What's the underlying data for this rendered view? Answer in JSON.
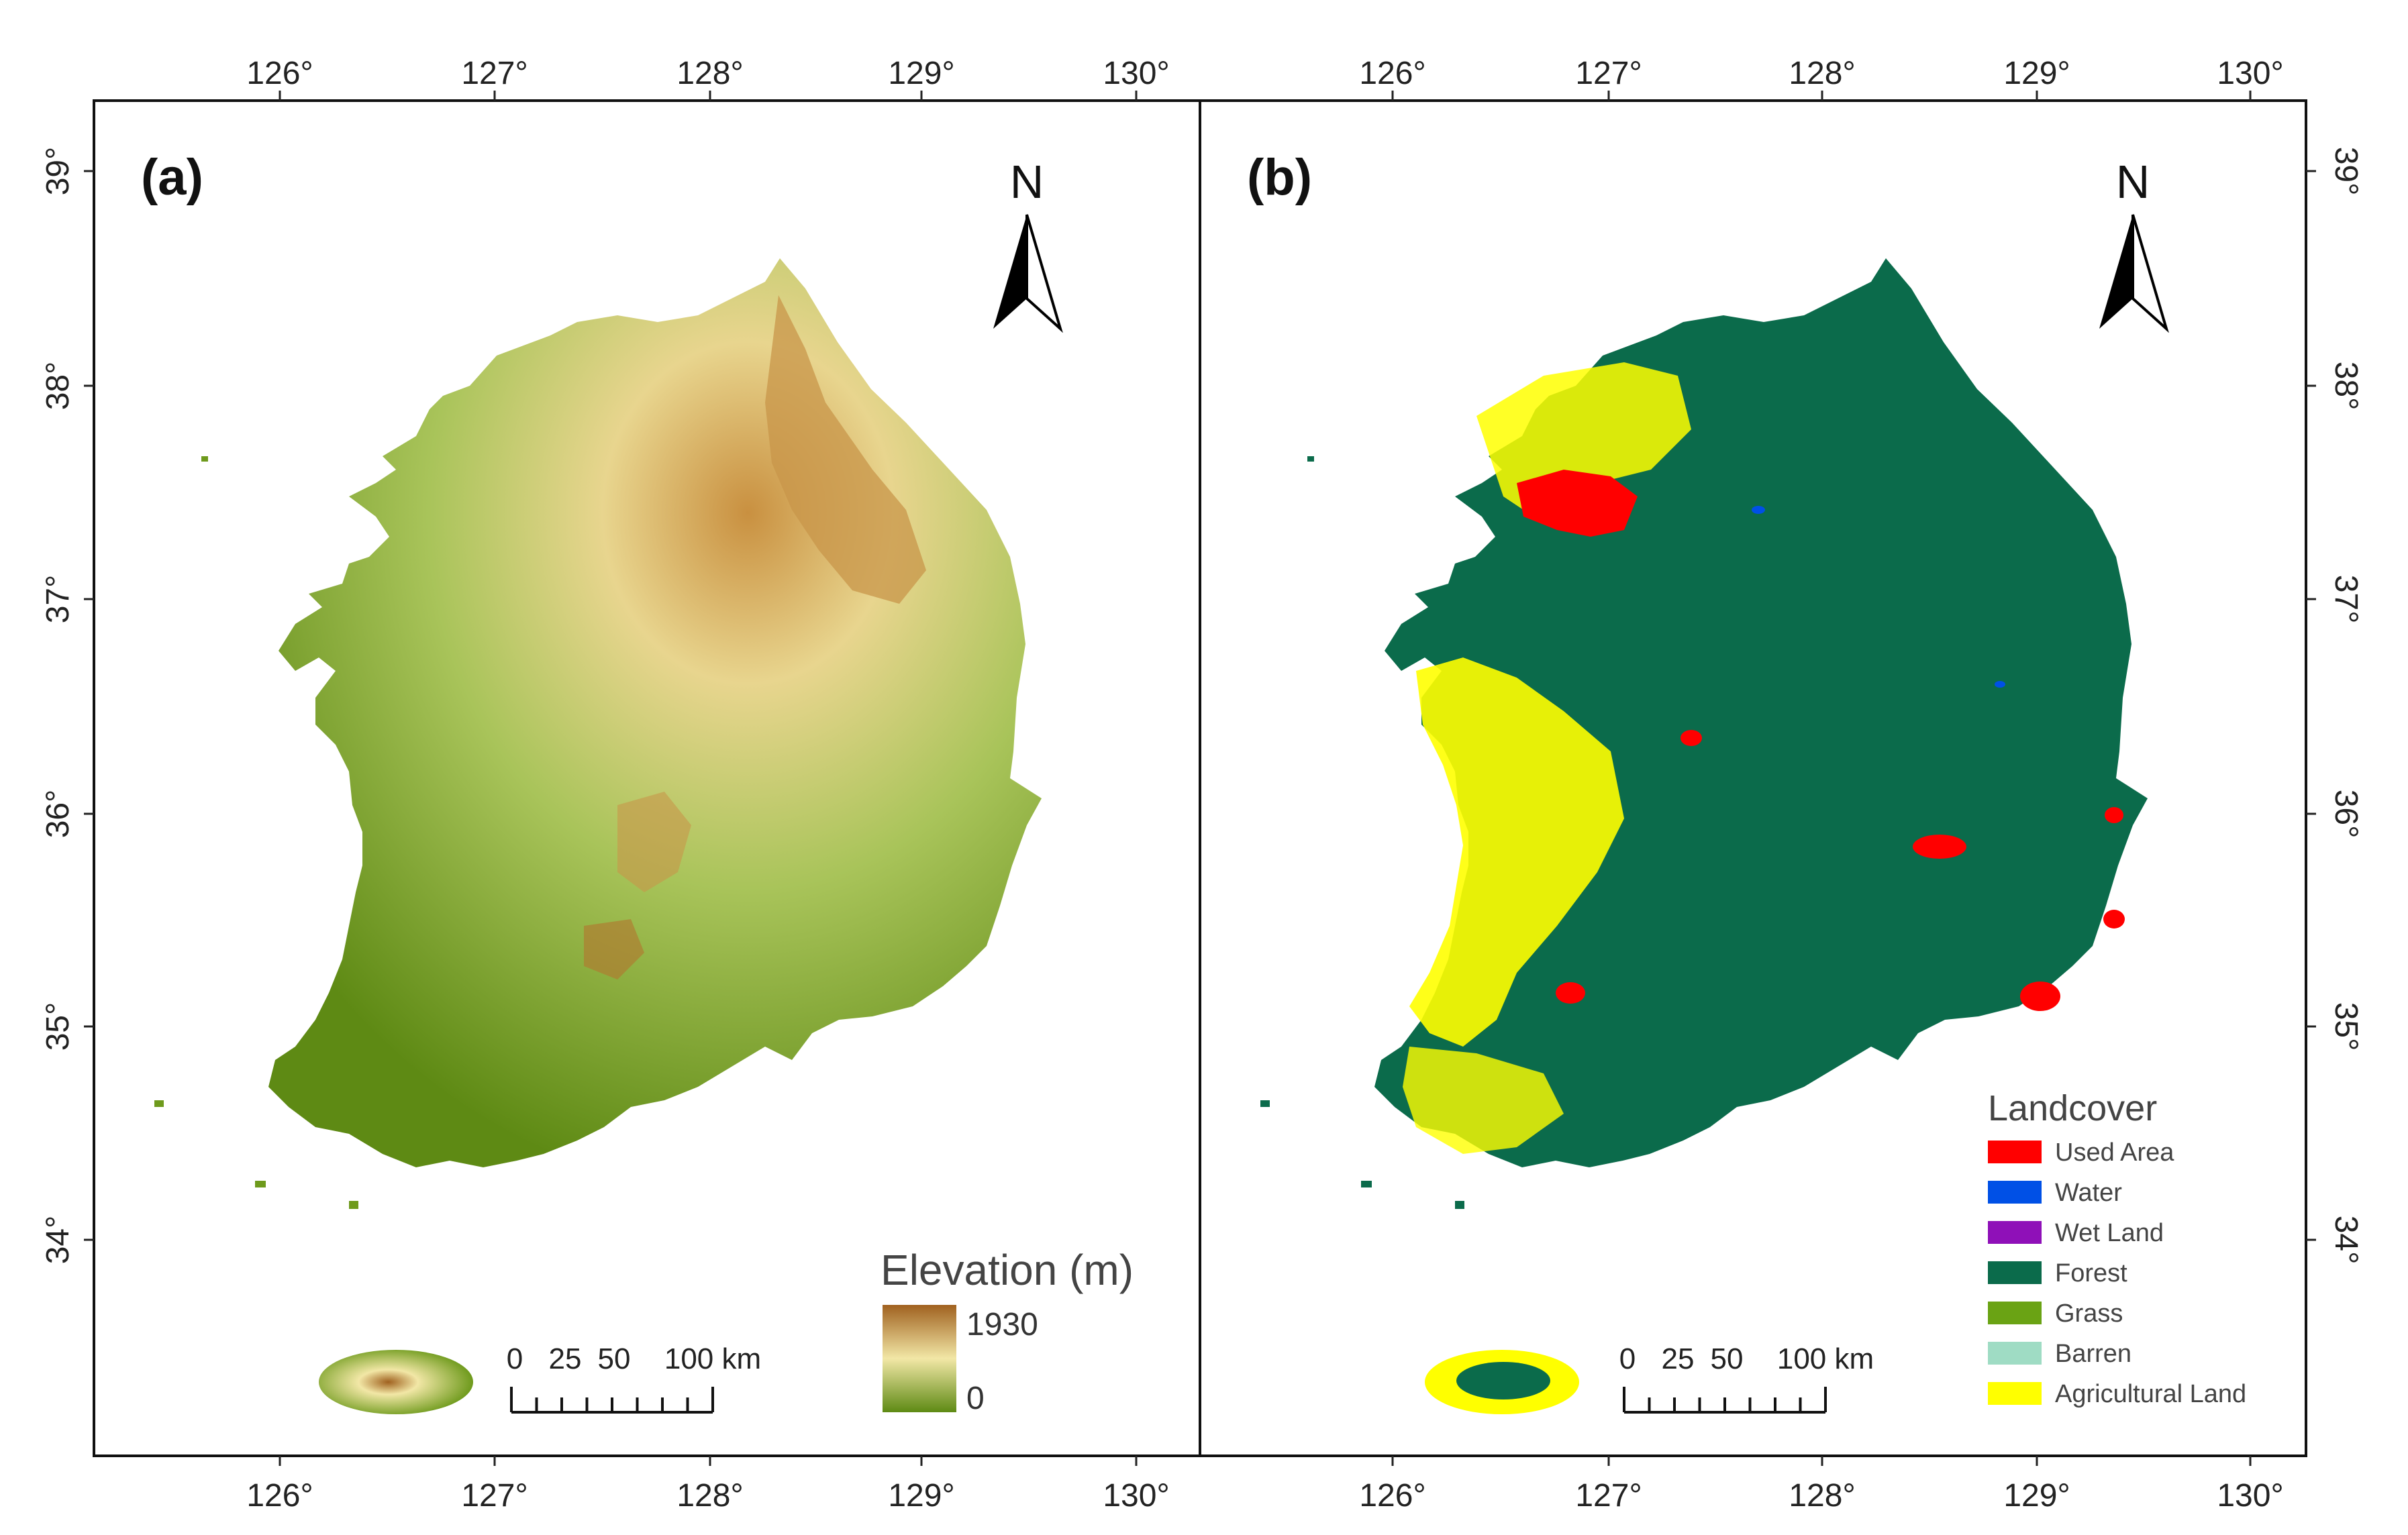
{
  "axes": {
    "longitude_ticks": [
      "126°",
      "127°",
      "128°",
      "129°",
      "130°"
    ],
    "latitude_ticks": [
      "39°",
      "38°",
      "37°",
      "36°",
      "35°",
      "34°"
    ]
  },
  "panel_a": {
    "label": "(a)",
    "north_label": "N",
    "legend": {
      "title": "Elevation (m)",
      "max_label": "1930",
      "min_label": "0",
      "colors": {
        "high": "#a0611f",
        "mid": "#f2e7a6",
        "low": "#5e8a14"
      }
    },
    "scalebar": {
      "labels": [
        "0",
        "25",
        "50",
        "100 km"
      ]
    }
  },
  "panel_b": {
    "label": "(b)",
    "north_label": "N",
    "legend": {
      "title": "Landcover",
      "items": [
        {
          "label": "Used Area",
          "color": "#ff0000"
        },
        {
          "label": "Water",
          "color": "#0050e6"
        },
        {
          "label": "Wet Land",
          "color": "#8f10b8"
        },
        {
          "label": "Forest",
          "color": "#0b6b4b"
        },
        {
          "label": "Grass",
          "color": "#6aa314"
        },
        {
          "label": "Barren",
          "color": "#9fdcc4"
        },
        {
          "label": "Agricultural Land",
          "color": "#ffff00"
        }
      ]
    },
    "scalebar": {
      "labels": [
        "0",
        "25",
        "50",
        "100 km"
      ]
    }
  }
}
